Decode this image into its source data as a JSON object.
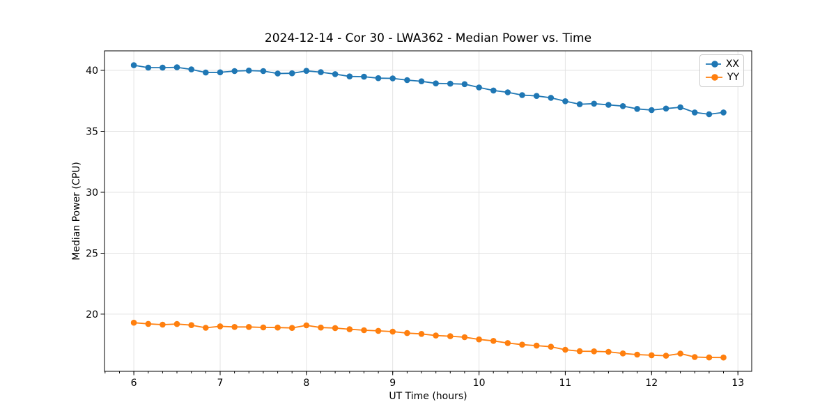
{
  "chart_data": {
    "type": "line",
    "title": "2024-12-14 - Cor 30 - LWA362 - Median Power vs. Time",
    "xlabel": "UT Time (hours)",
    "ylabel": "Median Power (CPU)",
    "xlim": [
      5.66,
      13.16
    ],
    "ylim": [
      15.31,
      41.6
    ],
    "xticks": [
      6,
      7,
      8,
      9,
      10,
      11,
      12,
      13
    ],
    "yticks": [
      20,
      25,
      30,
      35,
      40
    ],
    "x_minor_step": 0.166667,
    "grid": true,
    "legend_position": "upper right",
    "background": "#ffffff",
    "grid_color": "#e3e3e3",
    "spine_color": "#000000",
    "x": [
      6.0,
      6.167,
      6.333,
      6.5,
      6.667,
      6.833,
      7.0,
      7.167,
      7.333,
      7.5,
      7.667,
      7.833,
      8.0,
      8.167,
      8.333,
      8.5,
      8.667,
      8.833,
      9.0,
      9.167,
      9.333,
      9.5,
      9.667,
      9.833,
      10.0,
      10.167,
      10.333,
      10.5,
      10.667,
      10.833,
      11.0,
      11.167,
      11.333,
      11.5,
      11.667,
      11.833,
      12.0,
      12.167,
      12.333,
      12.5,
      12.667,
      12.833
    ],
    "series": [
      {
        "name": "XX",
        "color": "#1f77b4",
        "values": [
          40.42,
          40.22,
          40.22,
          40.25,
          40.08,
          39.82,
          39.84,
          39.94,
          39.98,
          39.94,
          39.74,
          39.76,
          39.96,
          39.85,
          39.69,
          39.5,
          39.48,
          39.36,
          39.34,
          39.2,
          39.1,
          38.93,
          38.91,
          38.87,
          38.6,
          38.35,
          38.2,
          37.97,
          37.9,
          37.75,
          37.47,
          37.22,
          37.27,
          37.17,
          37.07,
          36.84,
          36.74,
          36.87,
          36.97,
          36.55,
          36.4,
          36.55
        ]
      },
      {
        "name": "YY",
        "color": "#ff7f0e",
        "values": [
          19.3,
          19.2,
          19.14,
          19.19,
          19.1,
          18.88,
          19.0,
          18.95,
          18.95,
          18.91,
          18.9,
          18.87,
          19.08,
          18.9,
          18.86,
          18.76,
          18.68,
          18.63,
          18.57,
          18.45,
          18.38,
          18.25,
          18.19,
          18.11,
          17.93,
          17.81,
          17.63,
          17.5,
          17.42,
          17.33,
          17.08,
          16.96,
          16.95,
          16.91,
          16.78,
          16.68,
          16.63,
          16.59,
          16.77,
          16.48,
          16.45,
          16.44
        ]
      }
    ]
  }
}
